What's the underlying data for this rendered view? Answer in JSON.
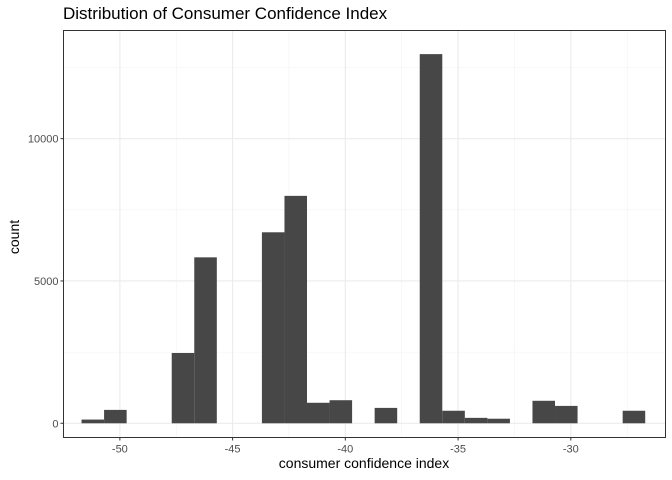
{
  "chart_data": {
    "type": "bar",
    "subtype": "histogram",
    "title": "Distribution of Consumer Confidence Index",
    "xlabel": "consumer confidence index",
    "ylabel": "count",
    "xlim": [
      -52.5,
      -25.8
    ],
    "ylim": [
      -500,
      13800
    ],
    "bin_width": 1,
    "x_ticks": [
      -50,
      -45,
      -40,
      -35,
      -30
    ],
    "x_tick_labels": [
      "-50",
      "-45",
      "-40",
      "-35",
      "-30"
    ],
    "y_ticks": [
      0,
      5000,
      10000
    ],
    "y_tick_labels": [
      "0",
      "5000",
      "10000"
    ],
    "grid": true,
    "legend": "none",
    "bar_color": "#474747",
    "bins": [
      {
        "x": -51.2,
        "count": 130
      },
      {
        "x": -50.2,
        "count": 470
      },
      {
        "x": -49.2,
        "count": 0
      },
      {
        "x": -48.2,
        "count": 0
      },
      {
        "x": -47.2,
        "count": 2470
      },
      {
        "x": -46.2,
        "count": 5830
      },
      {
        "x": -45.2,
        "count": 0
      },
      {
        "x": -44.2,
        "count": 0
      },
      {
        "x": -43.2,
        "count": 6710
      },
      {
        "x": -42.2,
        "count": 7990
      },
      {
        "x": -41.2,
        "count": 720
      },
      {
        "x": -40.2,
        "count": 810
      },
      {
        "x": -39.2,
        "count": 0
      },
      {
        "x": -38.2,
        "count": 540
      },
      {
        "x": -37.2,
        "count": 0
      },
      {
        "x": -36.2,
        "count": 12970
      },
      {
        "x": -35.2,
        "count": 440
      },
      {
        "x": -34.2,
        "count": 190
      },
      {
        "x": -33.2,
        "count": 160
      },
      {
        "x": -32.2,
        "count": 0
      },
      {
        "x": -31.2,
        "count": 790
      },
      {
        "x": -30.2,
        "count": 610
      },
      {
        "x": -29.2,
        "count": 0
      },
      {
        "x": -28.2,
        "count": 0
      },
      {
        "x": -27.2,
        "count": 440
      }
    ]
  }
}
